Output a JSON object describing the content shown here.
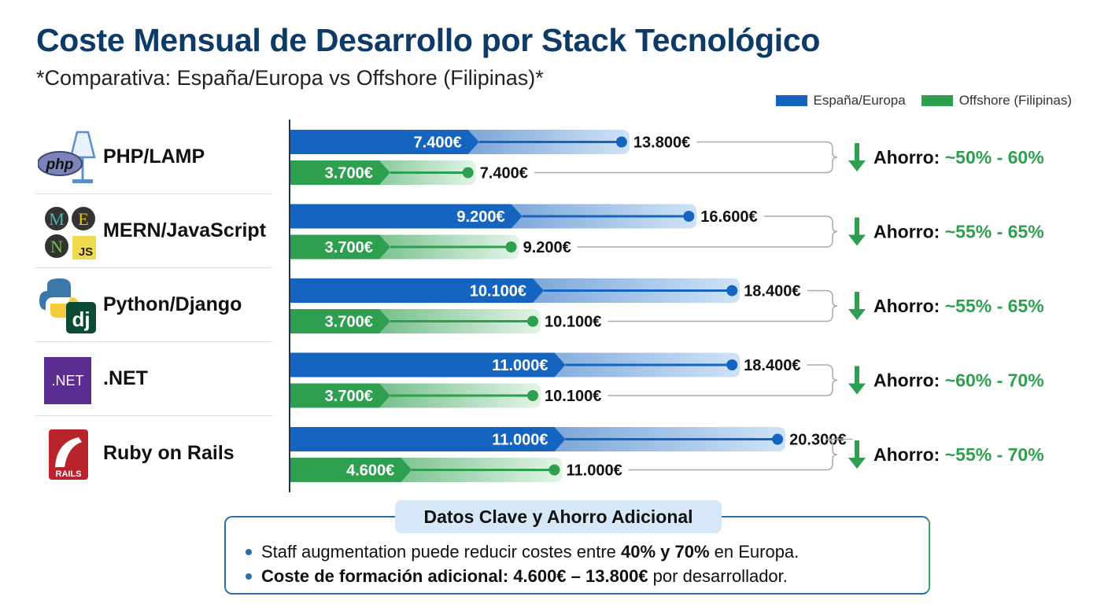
{
  "chart_data": {
    "type": "bar",
    "title": "Coste Mensual de Desarrollo por Stack Tecnológico",
    "subtitle": "*Comparativa: España/Europa vs Offshore (Filipinas)*",
    "legend_placement": "top-right",
    "categories": [
      "PHP/LAMP",
      "MERN/JavaScript",
      "Python/Django",
      ".NET",
      "Ruby on Rails"
    ],
    "series": [
      {
        "name": "España/Europa",
        "color": "#1565c0",
        "low": [
          7400,
          9200,
          10100,
          11000,
          11000
        ],
        "high": [
          13800,
          16600,
          18400,
          18400,
          20300
        ],
        "low_labels": [
          "7.400€",
          "9.200€",
          "10.100€",
          "11.000€",
          "11.000€"
        ],
        "high_labels": [
          "13.800€",
          "16.600€",
          "18.400€",
          "18.400€",
          "20.300€"
        ]
      },
      {
        "name": "Offshore (Filipinas)",
        "color": "#2e9e4f",
        "low": [
          3700,
          3700,
          3700,
          3700,
          4600
        ],
        "high": [
          7400,
          9200,
          10100,
          10100,
          11000
        ],
        "low_labels": [
          "3.700€",
          "3.700€",
          "3.700€",
          "3.700€",
          "4.600€"
        ],
        "high_labels": [
          "7.400€",
          "9.200€",
          "10.100€",
          "10.100€",
          "11.000€"
        ]
      }
    ],
    "savings_label": "Ahorro:",
    "savings": [
      "~50% - 60%",
      "~55% - 65%",
      "~55% - 65%",
      "~60% - 70%",
      "~55% - 70%"
    ],
    "savings_color": "#2e9e4f"
  },
  "logos": {
    "php": "php",
    "mern": [
      "M",
      "E",
      "N",
      "JS"
    ],
    "django": "dj",
    "net": ".NET",
    "rails": "RAILS"
  },
  "key_data": {
    "title": "Datos Clave y Ahorro Adicional",
    "line1": {
      "pre": "Staff augmentation puede reducir costes entre ",
      "bold": "40% y 70%",
      "post": " en Europa."
    },
    "line2": {
      "bold": "Coste de formación adicional: 4.600€ – 13.800€",
      "post": " por desarrollador."
    }
  }
}
